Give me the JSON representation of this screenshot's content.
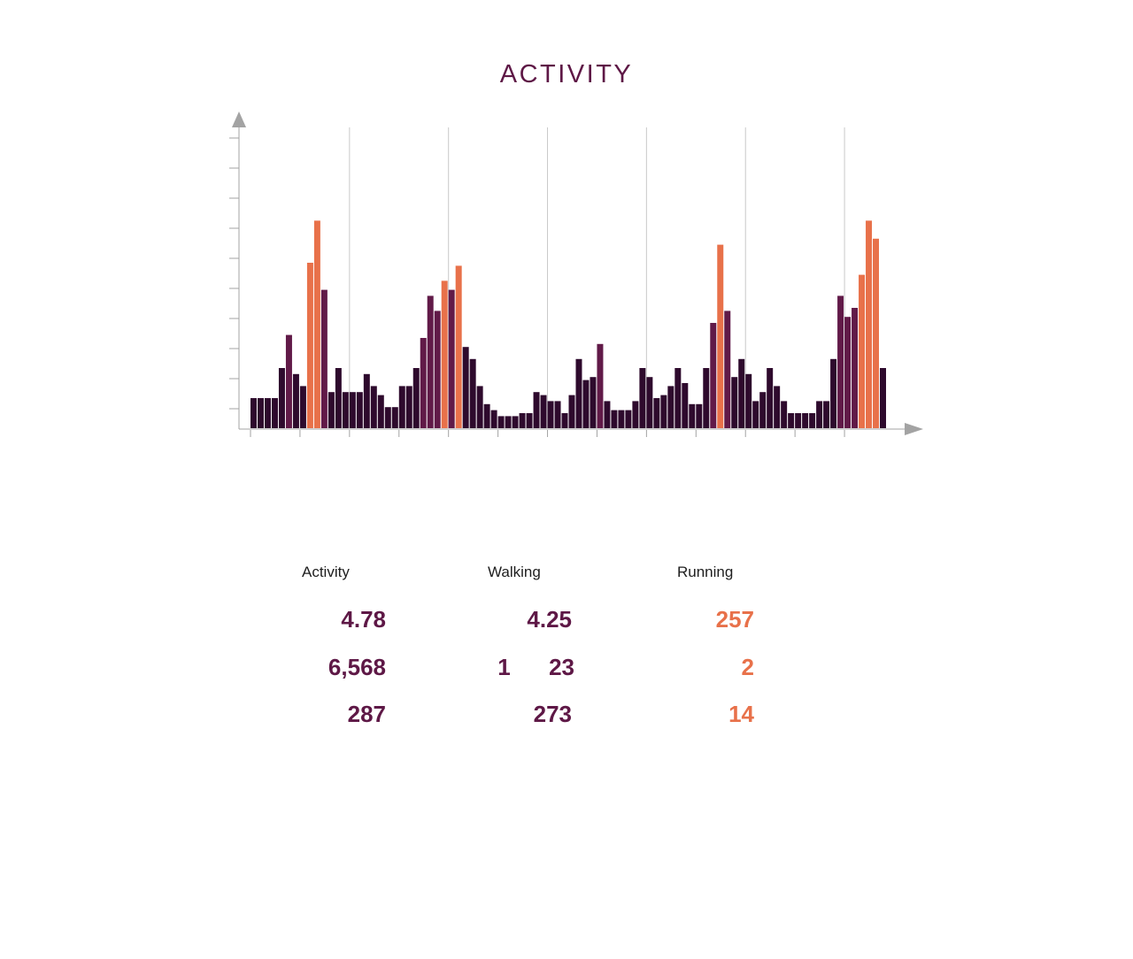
{
  "page": {
    "title": "ACTIVITY"
  },
  "colors": {
    "base": "#2e0a2d",
    "mid": "#611a48",
    "peak": "#e8714a",
    "axis": "#a3a3a3",
    "gridline": "#c9c9c9"
  },
  "chart_data": {
    "type": "bar",
    "title": "ACTIVITY",
    "xlabel": "",
    "ylabel": "",
    "ylim": [
      0,
      10
    ],
    "grid": "vertical gridlines",
    "legend": "none",
    "x_tick_labels": [],
    "y_tick_labels": [],
    "values": [
      1.0,
      1.0,
      1.0,
      1.0,
      2.0,
      3.1,
      1.8,
      1.4,
      5.5,
      6.9,
      4.6,
      1.2,
      2.0,
      1.2,
      1.2,
      1.2,
      1.8,
      1.4,
      1.1,
      0.7,
      0.7,
      1.4,
      1.4,
      2.0,
      3.0,
      4.4,
      3.9,
      4.9,
      4.6,
      5.4,
      2.7,
      2.3,
      1.4,
      0.8,
      0.6,
      0.4,
      0.4,
      0.4,
      0.5,
      0.5,
      1.2,
      1.1,
      0.9,
      0.9,
      0.5,
      1.1,
      2.3,
      1.6,
      1.7,
      2.8,
      0.9,
      0.6,
      0.6,
      0.6,
      0.9,
      2.0,
      1.7,
      1.0,
      1.1,
      1.4,
      2.0,
      1.5,
      0.8,
      0.8,
      2.0,
      3.5,
      6.1,
      3.9,
      1.7,
      2.3,
      1.8,
      0.9,
      1.2,
      2.0,
      1.4,
      0.9,
      0.5,
      0.5,
      0.5,
      0.5,
      0.9,
      0.9,
      2.3,
      4.4,
      3.7,
      4.0,
      5.1,
      6.9,
      6.3,
      2.0
    ],
    "highlight": [
      "base",
      "base",
      "base",
      "base",
      "base",
      "mid",
      "base",
      "base",
      "peak",
      "peak",
      "mid",
      "base",
      "base",
      "base",
      "base",
      "base",
      "base",
      "base",
      "base",
      "base",
      "base",
      "base",
      "base",
      "base",
      "mid",
      "mid",
      "mid",
      "peak",
      "mid",
      "peak",
      "base",
      "base",
      "base",
      "base",
      "base",
      "base",
      "base",
      "base",
      "base",
      "base",
      "base",
      "base",
      "base",
      "base",
      "base",
      "base",
      "base",
      "base",
      "base",
      "mid",
      "base",
      "base",
      "base",
      "base",
      "base",
      "base",
      "base",
      "base",
      "base",
      "base",
      "base",
      "base",
      "base",
      "base",
      "base",
      "mid",
      "peak",
      "mid",
      "base",
      "base",
      "base",
      "base",
      "base",
      "base",
      "base",
      "base",
      "base",
      "base",
      "base",
      "base",
      "base",
      "base",
      "base",
      "mid",
      "mid",
      "mid",
      "peak",
      "peak",
      "peak",
      "base"
    ]
  },
  "stats": {
    "headers": [
      "Activity",
      "Walking",
      "Running"
    ],
    "rows": [
      [
        "4.78",
        "4.25",
        "257"
      ],
      [
        "6,568",
        "1      23",
        "2"
      ],
      [
        "287",
        "273",
        "14"
      ]
    ]
  }
}
